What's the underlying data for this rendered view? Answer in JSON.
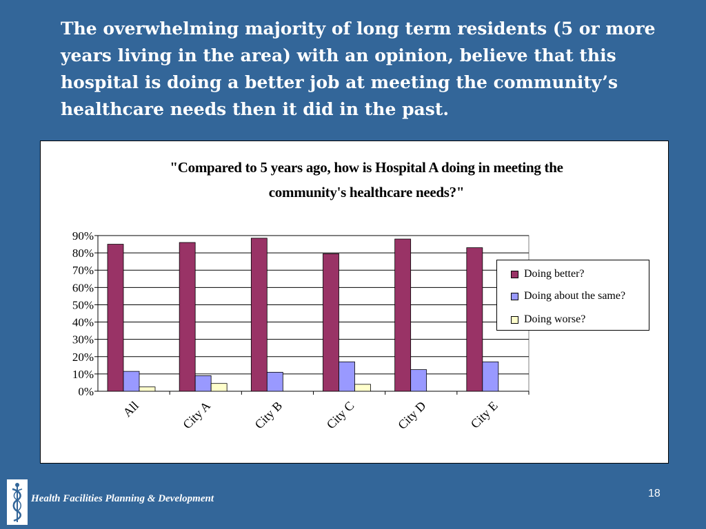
{
  "headline": "The overwhelming majority of long term residents (5 or more years living in the area) with an opinion, believe that this hospital  is doing a better job at meeting the community’s healthcare needs then it did in the past.",
  "footer": {
    "organization": "Health Facilities Planning & Development",
    "page_number": "18",
    "logo_icon": "caduceus-logo-icon"
  },
  "chart_data": {
    "type": "bar",
    "title_lines": [
      "\"Compared to 5 years ago, how is Hospital A doing in meeting the",
      "community's healthcare needs?\""
    ],
    "categories": [
      "All",
      "City A",
      "City B",
      "City C",
      "City D",
      "City E"
    ],
    "series": [
      {
        "name": "Doing better?",
        "color": "#993366",
        "values": [
          85,
          86,
          88.5,
          79.5,
          88,
          83
        ]
      },
      {
        "name": "Doing about the same?",
        "color": "#9999ff",
        "values": [
          11.5,
          9,
          11,
          17,
          12.5,
          17
        ]
      },
      {
        "name": "Doing worse?",
        "color": "#ffffcc",
        "values": [
          2.5,
          4.5,
          0,
          4,
          0,
          0
        ]
      }
    ],
    "yticks": [
      "0%",
      "10%",
      "20%",
      "30%",
      "40%",
      "50%",
      "60%",
      "70%",
      "80%",
      "90%"
    ],
    "ylim": [
      0,
      90
    ],
    "grid": true,
    "legend_position": "right"
  }
}
